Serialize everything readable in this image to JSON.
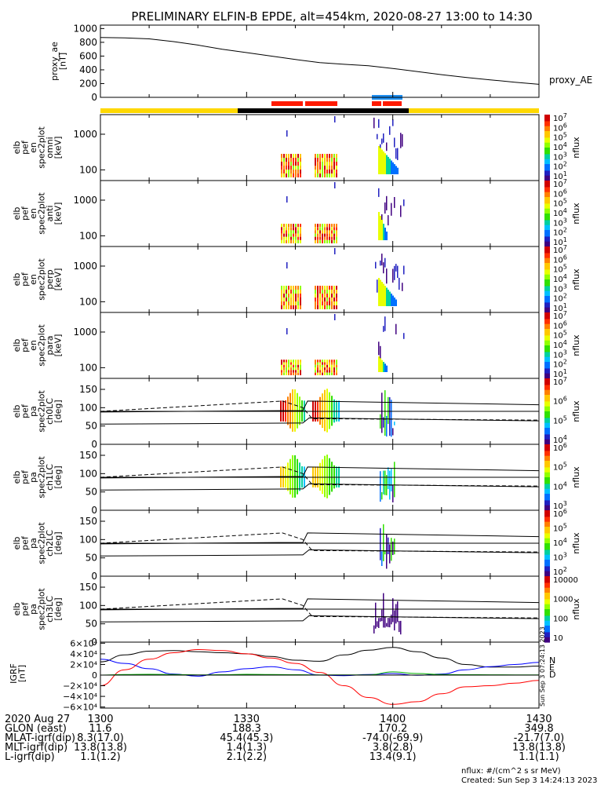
{
  "title": "PRELIMINARY ELFIN-B EPDE, alt=454km, 2020-08-27 13:00 to 14:30",
  "colors": {
    "bar_yellow": "#ffd800",
    "bar_black": "#000000",
    "bar_red": "#ff1a00",
    "bar_blue": "#1f8ff0",
    "grf_N": "#000000",
    "grf_E": "#0000ff",
    "grf_D": "#ff0000",
    "grf_green": "#00b000"
  },
  "chart_data": [
    {
      "type": "line",
      "panel": "proxy_ae",
      "ylabel_lines": [
        "proxy_ae",
        "[nT]"
      ],
      "yticks": [
        "1000",
        "800",
        "600",
        "400",
        "200",
        "0"
      ],
      "ylim": [
        0,
        1050
      ],
      "series_label": "proxy_AE",
      "x": [
        13.0,
        13.083,
        13.167,
        13.25,
        13.333,
        13.417,
        13.5,
        13.583,
        13.667,
        13.75,
        13.833,
        13.917,
        14.0,
        14.083,
        14.167,
        14.25,
        14.333,
        14.417,
        14.5
      ],
      "values": [
        870,
        865,
        850,
        810,
        760,
        700,
        650,
        600,
        550,
        505,
        480,
        460,
        420,
        375,
        330,
        290,
        255,
        220,
        190
      ]
    },
    {
      "type": "heatmap",
      "panels": [
        {
          "name": "elb pef en spec2plot omni",
          "ylabel_lines": [
            "elb",
            "pef",
            "en",
            "spec2plot",
            "omni",
            "[keV]"
          ],
          "yticks": [
            "1000",
            "100"
          ],
          "zticks": [
            "10⁷",
            "10⁶",
            "10⁵",
            "10⁴",
            "10³",
            "10²",
            "10¹"
          ],
          "zlabel": "nflux"
        },
        {
          "name": "elb pef en spec2plot anti",
          "ylabel_lines": [
            "elb",
            "pef",
            "en",
            "spec2plot",
            "anti",
            "[keV]"
          ],
          "yticks": [
            "1000",
            "100"
          ],
          "zticks": [
            "10⁷",
            "10⁶",
            "10⁵",
            "10⁴",
            "10³",
            "10²",
            "10¹"
          ],
          "zlabel": "nflux"
        },
        {
          "name": "elb pef en spec2plot perp",
          "ylabel_lines": [
            "elb",
            "pef",
            "en",
            "spec2plot",
            "perp",
            "[keV]"
          ],
          "yticks": [
            "1000",
            "100"
          ],
          "zticks": [
            "10⁷",
            "10⁶",
            "10⁵",
            "10⁴",
            "10³",
            "10²",
            "10¹"
          ],
          "zlabel": "nflux"
        },
        {
          "name": "elb pef en spec2plot para",
          "ylabel_lines": [
            "elb",
            "pef",
            "en",
            "spec2plot",
            "para",
            "[keV]"
          ],
          "yticks": [
            "1000",
            "100"
          ],
          "zticks": [
            "10⁷",
            "10⁶",
            "10⁵",
            "10⁴",
            "10³",
            "10²",
            "10¹"
          ],
          "zlabel": "nflux"
        },
        {
          "name": "elb pef pa spec2plot ch0LC",
          "ylabel_lines": [
            "elb",
            "pef",
            "pa",
            "spec2plot",
            "ch0LC",
            "[deg]"
          ],
          "yticks": [
            "150",
            "100",
            "50",
            "0"
          ],
          "zticks": [
            "10⁷",
            "10⁶",
            "10⁵",
            "10⁴"
          ],
          "zlabel": "nflux"
        },
        {
          "name": "elb pef pa spec2plot ch1LC",
          "ylabel_lines": [
            "elb",
            "pef",
            "pa",
            "spec2plot",
            "ch1LC",
            "[deg]"
          ],
          "yticks": [
            "150",
            "100",
            "50",
            "0"
          ],
          "zticks": [
            "10⁶",
            "10⁵",
            "10⁴",
            "10³"
          ],
          "zlabel": "nflux"
        },
        {
          "name": "elb pef pa spec2plot ch2LC",
          "ylabel_lines": [
            "elb",
            "pef",
            "pa",
            "spec2plot",
            "ch2LC",
            "[deg]"
          ],
          "yticks": [
            "150",
            "100",
            "50",
            "0"
          ],
          "zticks": [
            "10⁶",
            "10⁵",
            "10⁴",
            "10³",
            "10²"
          ],
          "zlabel": "nflux"
        },
        {
          "name": "elb pef pa spec2plot ch3LC",
          "ylabel_lines": [
            "elb",
            "pef",
            "pa",
            "spec2plot",
            "ch3LC",
            "[deg]"
          ],
          "yticks": [
            "150",
            "100",
            "50",
            "0"
          ],
          "zticks": [
            "10000",
            "1000",
            "100",
            "10"
          ],
          "zlabel": "nflux"
        }
      ]
    },
    {
      "type": "line",
      "panel": "IGRF",
      "ylabel_lines": [
        "IGRF",
        "[nT]"
      ],
      "yticks": [
        "6×10⁴",
        "4×10⁴",
        "2×10⁴",
        "0",
        "−2×10⁴",
        "−4×10⁴",
        "−6×10⁴"
      ],
      "ylim": [
        -62000,
        62000
      ],
      "legend": [
        "N",
        "E",
        "D"
      ],
      "x": [
        13.0,
        13.083,
        13.167,
        13.25,
        13.333,
        13.417,
        13.5,
        13.583,
        13.667,
        13.75,
        13.833,
        13.917,
        14.0,
        14.083,
        14.167,
        14.25,
        14.333,
        14.417,
        14.5
      ],
      "series": [
        {
          "name": "N",
          "values": [
            25000,
            38000,
            45000,
            46000,
            44000,
            42000,
            40000,
            35000,
            28000,
            26000,
            38000,
            47000,
            52000,
            44000,
            32000,
            20000,
            15000,
            15000,
            17000
          ]
        },
        {
          "name": "E",
          "values": [
            30000,
            22000,
            12000,
            2000,
            -2000,
            6000,
            12000,
            16000,
            10000,
            0,
            -1000,
            1000,
            3000,
            -500,
            2000,
            10000,
            16000,
            20000,
            24000
          ]
        },
        {
          "name": "D",
          "values": [
            -20000,
            10000,
            30000,
            42000,
            48000,
            46000,
            40000,
            32000,
            22000,
            5000,
            -20000,
            -42000,
            -55000,
            -50000,
            -35000,
            -22000,
            -20000,
            -15000,
            -10000
          ]
        },
        {
          "name": "",
          "values": [
            0,
            1000,
            1500,
            1000,
            500,
            800,
            1500,
            1200,
            800,
            400,
            300,
            500,
            6000,
            3000,
            1000,
            800,
            600,
            500,
            400
          ]
        }
      ]
    }
  ],
  "time_axis": {
    "rows": [
      {
        "label": "2020 Aug 27",
        "values": [
          "1300",
          "1330",
          "1400",
          "1430"
        ]
      },
      {
        "label": "GLON (east)",
        "values": [
          "11.6",
          "188.3",
          "170.2",
          "349.8"
        ]
      },
      {
        "label": "MLAT-igrf(dip)",
        "values": [
          "8.3(17.0)",
          "45.4(45.3)",
          "-74.0(-69.9)",
          "-21.7(7.0)"
        ]
      },
      {
        "label": "MLT-igrf(dip)",
        "values": [
          "13.8(13.8)",
          "1.4(1.3)",
          "3.8(2.8)",
          "13.8(13.8)"
        ]
      },
      {
        "label": "L-igrf(dip)",
        "values": [
          "1.1(1.2)",
          "2.1(2.2)",
          "13.4(9.1)",
          "1.1(1.1)"
        ]
      }
    ]
  },
  "footer": {
    "units": "nflux: #/(cm^2 s sr MeV)",
    "created": "Created: Sun Sep  3 14:24:13 2023",
    "side_stamp": "Sun Sep  3 07:24:13 2023"
  }
}
